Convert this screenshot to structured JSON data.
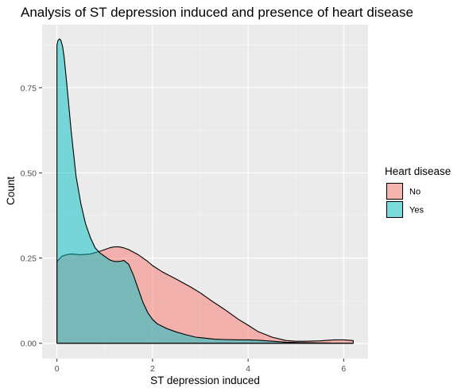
{
  "chart_data": {
    "type": "area",
    "title": "Analysis of ST depression induced and presence of heart disease",
    "xlabel": "ST depression induced",
    "ylabel": "Count",
    "xlim": [
      -0.31,
      6.51
    ],
    "ylim": [
      -0.045,
      0.935
    ],
    "x_ticks": [
      0,
      2,
      4,
      6
    ],
    "x_tick_labels": [
      "0",
      "2",
      "4",
      "6"
    ],
    "y_ticks": [
      0,
      0.25,
      0.5,
      0.75
    ],
    "y_tick_labels": [
      "0.00",
      "0.25",
      "0.50",
      "0.75"
    ],
    "grid": true,
    "legend": {
      "title": "Heart disease",
      "position": "right"
    },
    "series": [
      {
        "name": "No",
        "color": "#F8766D",
        "x": [
          0,
          0.1,
          0.2,
          0.3,
          0.5,
          0.7,
          0.9,
          1.0,
          1.1,
          1.2,
          1.3,
          1.4,
          1.5,
          1.7,
          1.9,
          2.0,
          2.2,
          2.5,
          2.8,
          3.0,
          3.2,
          3.5,
          3.8,
          4.0,
          4.2,
          4.5,
          4.8,
          5.0,
          5.2,
          5.5,
          5.8,
          6.0,
          6.2
        ],
        "y": [
          0.24,
          0.255,
          0.26,
          0.262,
          0.26,
          0.262,
          0.27,
          0.275,
          0.28,
          0.283,
          0.283,
          0.28,
          0.275,
          0.26,
          0.24,
          0.228,
          0.21,
          0.188,
          0.165,
          0.148,
          0.128,
          0.1,
          0.07,
          0.053,
          0.035,
          0.018,
          0.008,
          0.006,
          0.006,
          0.007,
          0.01,
          0.01,
          0.008
        ]
      },
      {
        "name": "Yes",
        "color": "#00BFC4",
        "x": [
          0,
          0.02,
          0.05,
          0.08,
          0.12,
          0.15,
          0.2,
          0.3,
          0.4,
          0.5,
          0.6,
          0.7,
          0.8,
          0.9,
          1.0,
          1.1,
          1.2,
          1.3,
          1.4,
          1.5,
          1.6,
          1.7,
          1.8,
          1.9,
          2.0,
          2.1,
          2.2,
          2.3,
          2.5,
          2.7,
          2.9,
          3.1,
          3.3,
          3.5,
          3.8,
          4.0,
          4.2,
          4.4,
          4.6,
          4.8,
          5.0,
          5.5,
          6.0,
          6.2
        ],
        "y": [
          0.875,
          0.888,
          0.893,
          0.89,
          0.87,
          0.84,
          0.77,
          0.62,
          0.49,
          0.41,
          0.35,
          0.31,
          0.28,
          0.265,
          0.255,
          0.245,
          0.24,
          0.24,
          0.243,
          0.232,
          0.2,
          0.16,
          0.12,
          0.09,
          0.07,
          0.057,
          0.05,
          0.043,
          0.033,
          0.025,
          0.018,
          0.015,
          0.012,
          0.011,
          0.01,
          0.01,
          0.009,
          0.007,
          0.005,
          0.003,
          0.002,
          0.001,
          0.0,
          0.0
        ]
      }
    ]
  }
}
